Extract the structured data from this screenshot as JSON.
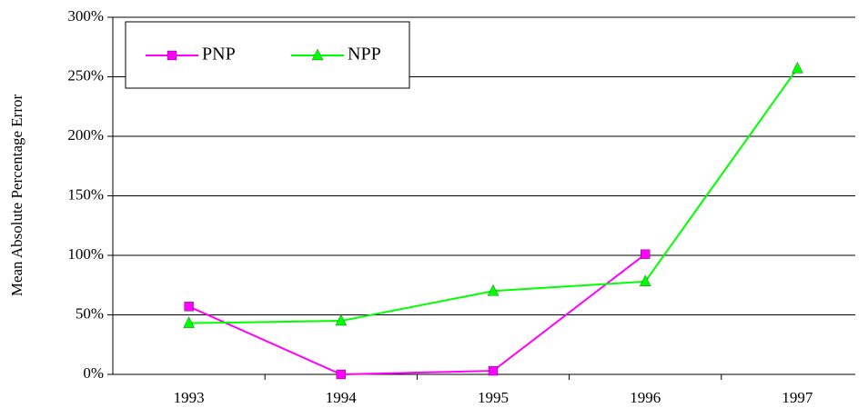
{
  "chart_data": {
    "type": "line",
    "y_label": "Mean Absolute Percentage Error",
    "categories": [
      "1993",
      "1994",
      "1995",
      "1996",
      "1997"
    ],
    "series": [
      {
        "name": "PNP",
        "color": "#ff00ff",
        "marker": "square",
        "values": [
          57,
          0,
          3,
          101,
          null
        ]
      },
      {
        "name": "NPP",
        "color": "#00ff00",
        "marker": "triangle",
        "values": [
          43,
          45,
          70,
          78,
          257
        ]
      }
    ],
    "ylim": [
      0,
      300
    ],
    "yticks": [
      {
        "value": 0,
        "label": "0%"
      },
      {
        "value": 50,
        "label": "50%"
      },
      {
        "value": 100,
        "label": "100%"
      },
      {
        "value": 150,
        "label": "150%"
      },
      {
        "value": 200,
        "label": "200%"
      },
      {
        "value": 250,
        "label": "250%"
      },
      {
        "value": 300,
        "label": "300%"
      }
    ],
    "grid": true,
    "legend": "upper left"
  }
}
